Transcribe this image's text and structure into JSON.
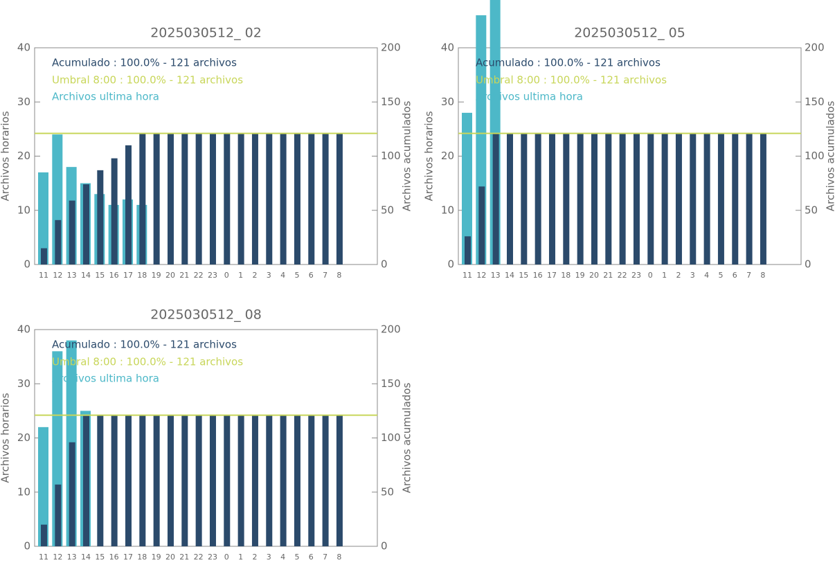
{
  "chart_data": [
    {
      "type": "bar",
      "title": "2025030512_ 02",
      "categories": [
        "11",
        "12",
        "13",
        "14",
        "15",
        "16",
        "17",
        "18",
        "19",
        "20",
        "21",
        "22",
        "23",
        "0",
        "1",
        "2",
        "3",
        "4",
        "5",
        "6",
        "7",
        "8"
      ],
      "series": [
        {
          "name": "Archivos ultima hora",
          "color": "#4db8c8",
          "values": [
            17,
            24,
            18,
            15,
            13,
            11,
            12,
            11,
            null,
            null,
            null,
            null,
            null,
            null,
            null,
            null,
            null,
            null,
            null,
            null,
            null,
            null
          ]
        },
        {
          "name": "Acumulado : 100.0% - 121 archivos",
          "color": "#2b4a6b",
          "axis": "y2",
          "values": [
            15,
            41,
            59,
            74,
            87,
            98,
            110,
            121,
            121,
            121,
            121,
            121,
            121,
            121,
            121,
            121,
            121,
            121,
            121,
            121,
            121,
            121
          ]
        }
      ],
      "reference_line": {
        "label": "Umbral 8:00 : 100.0% - 121 archivos",
        "value": 121,
        "axis": "y2",
        "color": "#c8d65a"
      },
      "ylabel": "Archivos horarios",
      "y2label": "Archivos acumulados",
      "ylim": [
        0,
        40
      ],
      "yticks": [
        0,
        10,
        20,
        30,
        40
      ],
      "y2lim": [
        0,
        200
      ],
      "y2ticks": [
        0,
        50,
        100,
        150,
        200
      ]
    },
    {
      "type": "bar",
      "title": "2025030512_ 05",
      "categories": [
        "11",
        "12",
        "13",
        "14",
        "15",
        "16",
        "17",
        "18",
        "19",
        "20",
        "21",
        "22",
        "23",
        "0",
        "1",
        "2",
        "3",
        "4",
        "5",
        "6",
        "7",
        "8"
      ],
      "series": [
        {
          "name": "Archivos ultima hora",
          "color": "#4db8c8",
          "values": [
            28,
            46,
            49,
            null,
            null,
            null,
            null,
            null,
            null,
            null,
            null,
            null,
            null,
            null,
            null,
            null,
            null,
            null,
            null,
            null,
            null,
            null
          ]
        },
        {
          "name": "Acumulado : 100.0% - 121 archivos",
          "color": "#2b4a6b",
          "axis": "y2",
          "values": [
            26,
            72,
            121,
            121,
            121,
            121,
            121,
            121,
            121,
            121,
            121,
            121,
            121,
            121,
            121,
            121,
            121,
            121,
            121,
            121,
            121,
            121
          ]
        }
      ],
      "reference_line": {
        "label": "Umbral 8:00 : 100.0% - 121 archivos",
        "value": 121,
        "axis": "y2",
        "color": "#c8d65a"
      },
      "ylabel": "Archivos horarios",
      "y2label": "Archivos acumulados",
      "ylim": [
        0,
        40
      ],
      "yticks": [
        0,
        10,
        20,
        30,
        40
      ],
      "y2lim": [
        0,
        200
      ],
      "y2ticks": [
        0,
        50,
        100,
        150,
        200
      ]
    },
    {
      "type": "bar",
      "title": "2025030512_ 08",
      "categories": [
        "11",
        "12",
        "13",
        "14",
        "15",
        "16",
        "17",
        "18",
        "19",
        "20",
        "21",
        "22",
        "23",
        "0",
        "1",
        "2",
        "3",
        "4",
        "5",
        "6",
        "7",
        "8"
      ],
      "series": [
        {
          "name": "Archivos ultima hora",
          "color": "#4db8c8",
          "values": [
            22,
            36,
            38,
            25,
            null,
            null,
            null,
            null,
            null,
            null,
            null,
            null,
            null,
            null,
            null,
            null,
            null,
            null,
            null,
            null,
            null,
            null
          ]
        },
        {
          "name": "Acumulado : 100.0% - 121 archivos",
          "color": "#2b4a6b",
          "axis": "y2",
          "values": [
            20,
            57,
            96,
            121,
            121,
            121,
            121,
            121,
            121,
            121,
            121,
            121,
            121,
            121,
            121,
            121,
            121,
            121,
            121,
            121,
            121,
            121
          ]
        }
      ],
      "reference_line": {
        "label": "Umbral 8:00 : 100.0% - 121 archivos",
        "value": 121,
        "axis": "y2",
        "color": "#c8d65a"
      },
      "ylabel": "Archivos horarios",
      "y2label": "Archivos acumulados",
      "ylim": [
        0,
        40
      ],
      "yticks": [
        0,
        10,
        20,
        30,
        40
      ],
      "y2lim": [
        0,
        200
      ],
      "y2ticks": [
        0,
        50,
        100,
        150,
        200
      ]
    }
  ]
}
